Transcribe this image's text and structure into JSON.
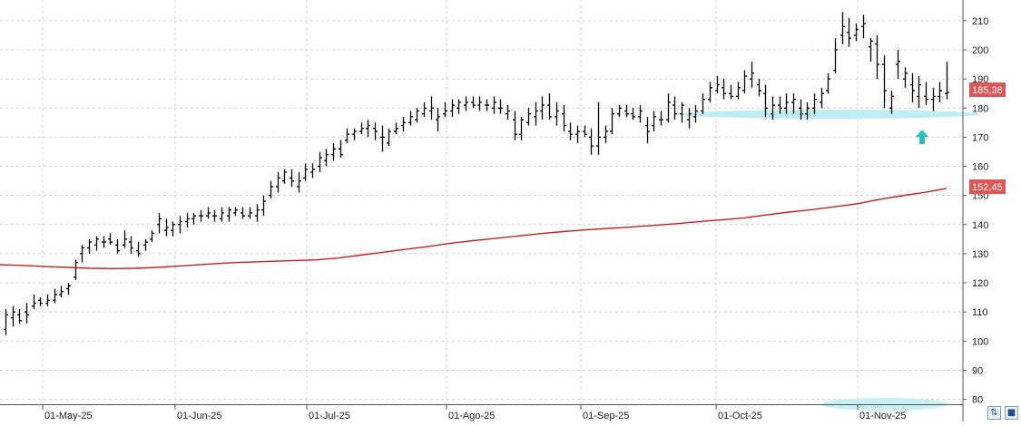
{
  "chart_data": {
    "type": "ohlc",
    "x_tick_labels": [
      "01-May-25",
      "01-Jun-25",
      "01-Jul-25",
      "01-Ago-25",
      "01-Sep-25",
      "01-Oct-25",
      "01-Nov-25"
    ],
    "y_tick_labels": [
      "80",
      "90",
      "100",
      "110",
      "120",
      "130",
      "140",
      "150",
      "160",
      "170",
      "180",
      "190",
      "200",
      "210"
    ],
    "ylim": [
      78,
      214
    ],
    "grid": true,
    "price_label": "185,38",
    "ma_label": "152,45",
    "colors": {
      "bars": "#000000",
      "ma": "#cc1f1f",
      "label_bg": "#e05555",
      "support": "#bdeef3",
      "arrow": "#2bbfbf",
      "grid": "#d0d0d0"
    },
    "ma_series": [
      126.2,
      126.0,
      125.6,
      125.3,
      125.0,
      124.9,
      125.0,
      125.3,
      125.8,
      126.3,
      126.8,
      127.1,
      127.4,
      127.6,
      127.9,
      128.5,
      129.5,
      130.5,
      131.5,
      132.5,
      133.6,
      134.5,
      135.3,
      136.1,
      136.9,
      137.6,
      138.2,
      138.7,
      139.2,
      139.7,
      140.3,
      141.0,
      141.6,
      142.3,
      143.3,
      144.3,
      145.1,
      146.1,
      147.1,
      148.6,
      149.9,
      151.0,
      152.45
    ],
    "ohlc_bars": [
      [
        104,
        111,
        102,
        109
      ],
      [
        108,
        112,
        105,
        110
      ],
      [
        109,
        111,
        106,
        107
      ],
      [
        110,
        113,
        106,
        109
      ],
      [
        112,
        116,
        111,
        113
      ],
      [
        114,
        115,
        112,
        113
      ],
      [
        113,
        116,
        112,
        114
      ],
      [
        114,
        118,
        113,
        116
      ],
      [
        116,
        119,
        115,
        117
      ],
      [
        118,
        120,
        116,
        119
      ],
      [
        122,
        128,
        121,
        127
      ],
      [
        130,
        133,
        127,
        132
      ],
      [
        132,
        135,
        130,
        134
      ],
      [
        133,
        136,
        131,
        135
      ],
      [
        134,
        136,
        132,
        134
      ],
      [
        135,
        137,
        133,
        134
      ],
      [
        133,
        135,
        130,
        131
      ],
      [
        133,
        138,
        132,
        135
      ],
      [
        134,
        136,
        130,
        132
      ],
      [
        131,
        134,
        129,
        130
      ],
      [
        133,
        135,
        131,
        134
      ],
      [
        135,
        138,
        134,
        137
      ],
      [
        140,
        144,
        137,
        142
      ],
      [
        138,
        142,
        136,
        139
      ],
      [
        138,
        141,
        136,
        140
      ],
      [
        140,
        143,
        137,
        141
      ],
      [
        141,
        144,
        139,
        142
      ],
      [
        142,
        144,
        140,
        143
      ],
      [
        143,
        145,
        141,
        143
      ],
      [
        143,
        146,
        142,
        144
      ],
      [
        143,
        145,
        141,
        143
      ],
      [
        142,
        146,
        141,
        144
      ],
      [
        143,
        146,
        141,
        145
      ],
      [
        144,
        146,
        143,
        145
      ],
      [
        144,
        146,
        142,
        143
      ],
      [
        143,
        146,
        142,
        144
      ],
      [
        143,
        147,
        141,
        145
      ],
      [
        145,
        150,
        143,
        148
      ],
      [
        150,
        155,
        149,
        153
      ],
      [
        153,
        158,
        151,
        156
      ],
      [
        155,
        159,
        154,
        158
      ],
      [
        156,
        159,
        153,
        155
      ],
      [
        153,
        158,
        151,
        155
      ],
      [
        156,
        161,
        155,
        159
      ],
      [
        158,
        161,
        156,
        159
      ],
      [
        160,
        165,
        158,
        163
      ],
      [
        162,
        166,
        160,
        164
      ],
      [
        164,
        168,
        162,
        166
      ],
      [
        166,
        169,
        163,
        164
      ],
      [
        169,
        173,
        168,
        171
      ],
      [
        171,
        173,
        169,
        172
      ],
      [
        172,
        175,
        171,
        173
      ],
      [
        173,
        176,
        170,
        174
      ],
      [
        173,
        175,
        169,
        172
      ],
      [
        170,
        174,
        165,
        170
      ],
      [
        168,
        173,
        167,
        172
      ],
      [
        172,
        175,
        171,
        173
      ],
      [
        174,
        177,
        172,
        175
      ],
      [
        175,
        179,
        174,
        177
      ],
      [
        176,
        180,
        175,
        179
      ],
      [
        178,
        182,
        177,
        180
      ],
      [
        179,
        184,
        176,
        180
      ],
      [
        176,
        180,
        172,
        177
      ],
      [
        178,
        182,
        177,
        179
      ],
      [
        179,
        183,
        177,
        181
      ],
      [
        180,
        183,
        178,
        182
      ],
      [
        181,
        184,
        179,
        182
      ],
      [
        182,
        184,
        180,
        181
      ],
      [
        181,
        184,
        179,
        182
      ],
      [
        181,
        183,
        179,
        181
      ],
      [
        180,
        184,
        178,
        182
      ],
      [
        180,
        183,
        178,
        180
      ],
      [
        178,
        181,
        176,
        179
      ],
      [
        176,
        179,
        169,
        171
      ],
      [
        171,
        177,
        169,
        176
      ],
      [
        175,
        180,
        174,
        178
      ],
      [
        177,
        182,
        174,
        179
      ],
      [
        179,
        184,
        176,
        181
      ],
      [
        181,
        185,
        176,
        177
      ],
      [
        177,
        182,
        174,
        179
      ],
      [
        178,
        181,
        172,
        174
      ],
      [
        172,
        175,
        169,
        171
      ],
      [
        171,
        174,
        168,
        172
      ],
      [
        172,
        174,
        170,
        171
      ],
      [
        170,
        173,
        164,
        167
      ],
      [
        167,
        182,
        164,
        170
      ],
      [
        170,
        174,
        168,
        172
      ],
      [
        172,
        180,
        171,
        178
      ],
      [
        178,
        181,
        177,
        180
      ],
      [
        179,
        181,
        177,
        178
      ],
      [
        178,
        180,
        176,
        177
      ],
      [
        177,
        181,
        175,
        179
      ],
      [
        174,
        177,
        168,
        172
      ],
      [
        174,
        179,
        172,
        177
      ],
      [
        176,
        179,
        174,
        176
      ],
      [
        176,
        185,
        175,
        182
      ],
      [
        181,
        184,
        176,
        178
      ],
      [
        178,
        182,
        175,
        181
      ],
      [
        176,
        180,
        173,
        178
      ],
      [
        177,
        181,
        175,
        179
      ],
      [
        179,
        185,
        178,
        183
      ],
      [
        183,
        189,
        182,
        187
      ],
      [
        186,
        191,
        185,
        188
      ],
      [
        187,
        190,
        183,
        185
      ],
      [
        185,
        188,
        183,
        184
      ],
      [
        184,
        189,
        183,
        187
      ],
      [
        186,
        193,
        185,
        191
      ],
      [
        190,
        196,
        187,
        192
      ],
      [
        188,
        190,
        184,
        186
      ],
      [
        185,
        188,
        177,
        180
      ],
      [
        178,
        184,
        176,
        181
      ],
      [
        181,
        184,
        178,
        180
      ],
      [
        180,
        185,
        178,
        182
      ],
      [
        182,
        185,
        178,
        183
      ],
      [
        180,
        183,
        176,
        178
      ],
      [
        178,
        182,
        176,
        180
      ],
      [
        180,
        185,
        178,
        183
      ],
      [
        182,
        187,
        180,
        185
      ],
      [
        186,
        192,
        185,
        190
      ],
      [
        193,
        204,
        192,
        200
      ],
      [
        205,
        213,
        202,
        208
      ],
      [
        206,
        211,
        201,
        204
      ],
      [
        205,
        209,
        203,
        207
      ],
      [
        208,
        212,
        204,
        209
      ],
      [
        201,
        204,
        196,
        203
      ],
      [
        202,
        205,
        190,
        195
      ],
      [
        195,
        198,
        180,
        186
      ],
      [
        180,
        186,
        178,
        184
      ],
      [
        195,
        200,
        190,
        196
      ],
      [
        190,
        194,
        187,
        192
      ],
      [
        188,
        192,
        182,
        186
      ],
      [
        184,
        191,
        180,
        188
      ],
      [
        184,
        189,
        181,
        183
      ],
      [
        183,
        187,
        179,
        184
      ],
      [
        184,
        189,
        182,
        186
      ],
      [
        185,
        196,
        183,
        185.38
      ]
    ]
  }
}
